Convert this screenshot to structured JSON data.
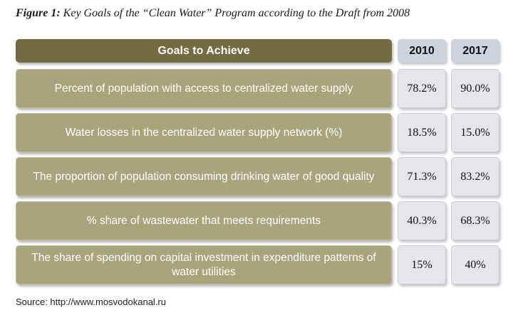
{
  "figure": {
    "label": "Figure 1:",
    "title": "Key Goals of the “Clean Water” Program according to the Draft from 2008"
  },
  "table": {
    "headers": {
      "goal": "Goals to Achieve",
      "year1": "2010",
      "year2": "2017"
    },
    "rows": [
      {
        "goal": "Percent of population with access to centralized water supply",
        "y2010": "78.2%",
        "y2017": "90.0%"
      },
      {
        "goal": "Water losses in the centralized water supply network (%)",
        "y2010": "18.5%",
        "y2017": "15.0%"
      },
      {
        "goal": "The proportion of population consuming drinking water of good quality",
        "y2010": "71.3%",
        "y2017": "83.2%"
      },
      {
        "goal": "% share of wastewater that meets requirements",
        "y2010": "40.3%",
        "y2017": "68.3%"
      },
      {
        "goal": "The share of spending on capital investment in expenditure patterns of water utilities",
        "y2010": "15%",
        "y2017": "40%"
      }
    ]
  },
  "source": "Source: http://www.mosvodokanal.ru",
  "colors": {
    "header_goal_bg": "#736b41",
    "header_year_bg": "#cdd3dd",
    "goal_cell_bg": "#a8a47c",
    "value_cell_bg": "#e4e6ec"
  }
}
